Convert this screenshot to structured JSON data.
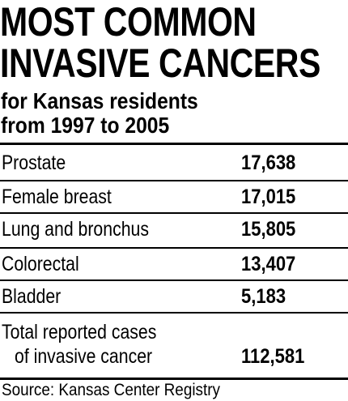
{
  "header": {
    "title_lines": [
      "MOST COMMON",
      "INVASIVE CANCERS"
    ],
    "subtitle_lines": [
      "for Kansas residents",
      "from 1997 to 2005"
    ]
  },
  "table": {
    "rows": [
      [
        "Prostate",
        "17,638"
      ],
      [
        "Female breast",
        "17,015"
      ],
      [
        "Lung and bronchus",
        "15,805"
      ],
      [
        "Colorectal",
        "13,407"
      ],
      [
        "Bladder",
        "5,183"
      ]
    ],
    "total": {
      "label_lines": [
        "Total reported cases",
        "of invasive cancer"
      ],
      "value": "112,581"
    }
  },
  "footer": {
    "source": "Source: Kansas Center Registry"
  }
}
